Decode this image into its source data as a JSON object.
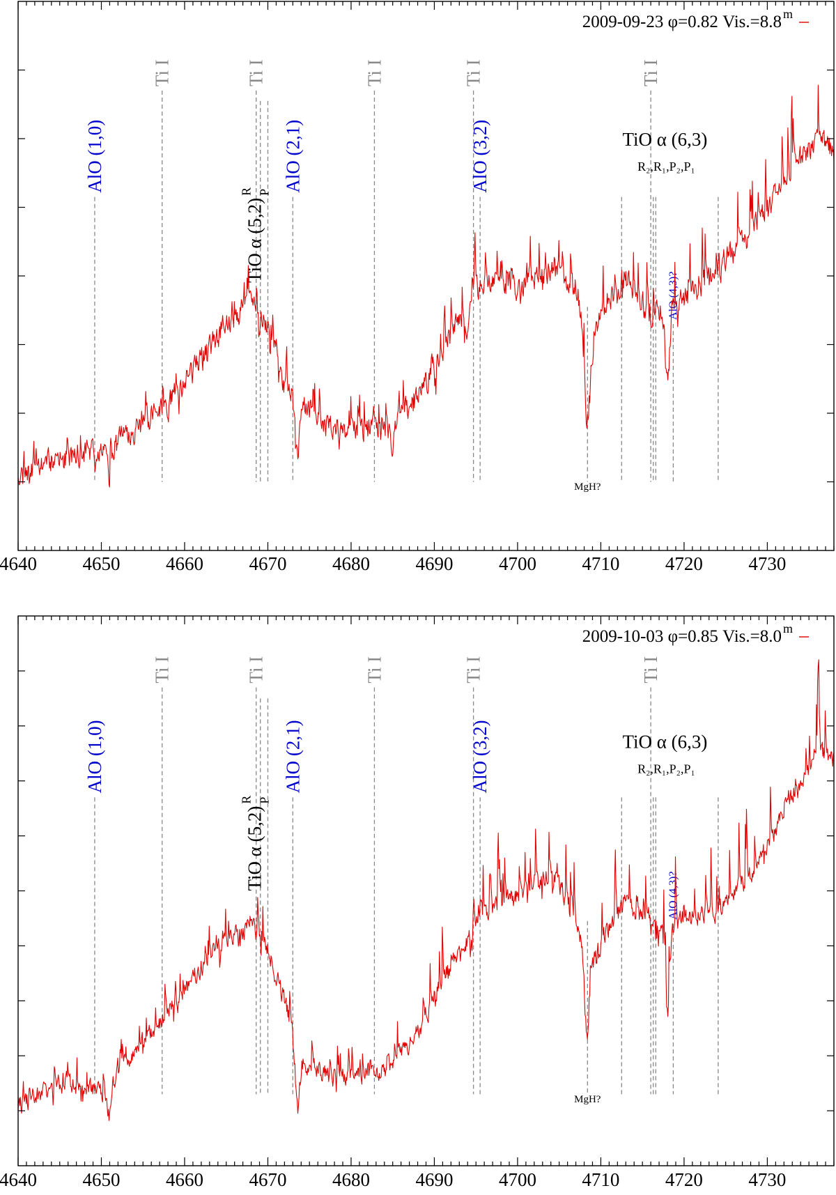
{
  "colors": {
    "spectrum": "#e00000",
    "alo": "#0000cc",
    "ti": "#888888",
    "tio": "#000000"
  },
  "chart_data": [
    {
      "type": "line",
      "legend": "2009-09-23 φ=0.82 Vis.=8.8",
      "legend_sup": "m",
      "legend_position": "top-right",
      "xlim": [
        4640,
        4738
      ],
      "x_ticks": [
        "4640",
        "4650",
        "4660",
        "4670",
        "4680",
        "4690",
        "4700",
        "4710",
        "4720",
        "4730"
      ],
      "ylim": [
        0,
        8
      ],
      "y_minor_ticks": [
        1,
        2,
        3,
        4,
        5,
        6,
        7
      ],
      "series": [
        {
          "name": "2009-09-23",
          "color": "#e00000",
          "seed": 11,
          "spike_height": 0.55
        }
      ],
      "baseline": [
        [
          4640,
          1.15
        ],
        [
          4646,
          1.35
        ],
        [
          4652,
          1.55
        ],
        [
          4658,
          2.15
        ],
        [
          4662,
          2.75
        ],
        [
          4665,
          3.3
        ],
        [
          4668,
          3.65
        ],
        [
          4670,
          3.2
        ],
        [
          4672,
          2.4
        ],
        [
          4676,
          1.85
        ],
        [
          4680,
          1.75
        ],
        [
          4684,
          1.75
        ],
        [
          4688,
          2.2
        ],
        [
          4691,
          2.9
        ],
        [
          4694,
          3.6
        ],
        [
          4696,
          3.9
        ],
        [
          4700,
          3.85
        ],
        [
          4704,
          4.1
        ],
        [
          4707,
          3.9
        ],
        [
          4708.5,
          2.65
        ],
        [
          4710,
          3.5
        ],
        [
          4713,
          4.0
        ],
        [
          4716,
          3.4
        ],
        [
          4718,
          3.6
        ],
        [
          4720,
          3.65
        ],
        [
          4724,
          4.1
        ],
        [
          4728,
          4.6
        ],
        [
          4732,
          5.4
        ],
        [
          4736,
          6.0
        ],
        [
          4738,
          5.8
        ]
      ],
      "dips": [
        [
          4651.0,
          0.45
        ],
        [
          4673.5,
          0.8
        ],
        [
          4685.0,
          0.4
        ],
        [
          4694.0,
          0.5
        ],
        [
          4708.3,
          0.9
        ],
        [
          4718.0,
          1.2
        ]
      ],
      "ann_bottom": 1.0,
      "label_top": 6.7,
      "lines": [
        {
          "x": 4649.2,
          "text": "AlO (1,0)",
          "kind": "alo",
          "top": 5.15
        },
        {
          "x": 4657.3,
          "text": "Ti I",
          "kind": "ti",
          "top": 6.7
        },
        {
          "x": 4668.6,
          "text": "Ti I",
          "kind": "ti",
          "top": 6.7
        },
        {
          "x": 4669.1,
          "text": "",
          "kind": "tio",
          "top": 6.55
        },
        {
          "x": 4670.0,
          "text": "",
          "kind": "tio",
          "top": 6.55
        },
        {
          "x": 4673.0,
          "text": "AlO (2,1)",
          "kind": "alo",
          "top": 5.15
        },
        {
          "x": 4682.8,
          "text": "Ti I",
          "kind": "ti",
          "top": 6.7
        },
        {
          "x": 4694.7,
          "text": "Ti I",
          "kind": "ti",
          "top": 6.7
        },
        {
          "x": 4695.5,
          "text": "AlO (3,2)",
          "kind": "alo",
          "top": 5.15
        },
        {
          "x": 4708.4,
          "text": "MgH?",
          "kind": "mgh",
          "top": 3.55
        },
        {
          "x": 4712.5,
          "text": "",
          "kind": "tio",
          "top": 5.15
        },
        {
          "x": 4716.0,
          "text": "Ti I",
          "kind": "ti",
          "top": 6.7
        },
        {
          "x": 4716.3,
          "text": "",
          "kind": "tio",
          "top": 5.15
        },
        {
          "x": 4716.6,
          "text": "",
          "kind": "tio",
          "top": 5.15
        },
        {
          "x": 4718.7,
          "text": "AlO (4,3)?",
          "kind": "alo-small",
          "top": 3.3
        },
        {
          "x": 4724.1,
          "text": "",
          "kind": "tio",
          "top": 5.15
        }
      ],
      "tio52": {
        "main": "TiO α (5,2)",
        "sup": "R",
        "sub": "P",
        "x": 4668.4,
        "y": 3.9
      },
      "tio63": {
        "main": "TiO α (6,3)",
        "sub": "R₂,R₁,P₂,P₁",
        "x": 4717.7,
        "y": 5.9
      }
    },
    {
      "type": "line",
      "legend": "2009-10-03 φ=0.85 Vis.=8.0",
      "legend_sup": "m",
      "legend_position": "top-right",
      "xlim": [
        4640,
        4738
      ],
      "x_ticks": [
        "4640",
        "4650",
        "4660",
        "4670",
        "4680",
        "4690",
        "4700",
        "4710",
        "4720",
        "4730"
      ],
      "ylim": [
        0,
        10
      ],
      "y_minor_ticks": [
        1,
        2,
        3,
        4,
        5,
        6,
        7,
        8,
        9
      ],
      "series": [
        {
          "name": "2009-10-03",
          "color": "#e00000",
          "seed": 29,
          "spike_height": 0.85
        }
      ],
      "baseline": [
        [
          4640,
          1.1
        ],
        [
          4646,
          1.55
        ],
        [
          4650,
          1.3
        ],
        [
          4654,
          2.1
        ],
        [
          4658,
          2.8
        ],
        [
          4662,
          3.6
        ],
        [
          4665,
          4.1
        ],
        [
          4668,
          4.45
        ],
        [
          4670,
          3.9
        ],
        [
          4672,
          3.0
        ],
        [
          4674,
          1.9
        ],
        [
          4678,
          1.6
        ],
        [
          4684,
          1.7
        ],
        [
          4688,
          2.4
        ],
        [
          4691,
          3.4
        ],
        [
          4694,
          4.1
        ],
        [
          4696,
          4.6
        ],
        [
          4700,
          4.9
        ],
        [
          4704,
          5.3
        ],
        [
          4707,
          4.6
        ],
        [
          4708.5,
          3.3
        ],
        [
          4710,
          4.1
        ],
        [
          4713,
          4.8
        ],
        [
          4716,
          4.35
        ],
        [
          4718,
          4.2
        ],
        [
          4720,
          4.5
        ],
        [
          4724,
          4.6
        ],
        [
          4728,
          5.3
        ],
        [
          4732,
          6.4
        ],
        [
          4736,
          7.5
        ],
        [
          4738,
          7.4
        ]
      ],
      "dips": [
        [
          4651.0,
          0.6
        ],
        [
          4673.5,
          0.9
        ],
        [
          4708.3,
          1.0
        ],
        [
          4718.0,
          1.4
        ]
      ],
      "ann_bottom": 1.3,
      "label_top": 8.7,
      "lines": [
        {
          "x": 4649.2,
          "text": "AlO (1,0)",
          "kind": "alo",
          "top": 6.7
        },
        {
          "x": 4657.3,
          "text": "Ti I",
          "kind": "ti",
          "top": 8.7
        },
        {
          "x": 4668.6,
          "text": "Ti I",
          "kind": "ti",
          "top": 8.7
        },
        {
          "x": 4669.1,
          "text": "",
          "kind": "tio",
          "top": 8.5
        },
        {
          "x": 4670.0,
          "text": "",
          "kind": "tio",
          "top": 8.5
        },
        {
          "x": 4673.0,
          "text": "AlO (2,1)",
          "kind": "alo",
          "top": 6.7
        },
        {
          "x": 4682.8,
          "text": "Ti I",
          "kind": "ti",
          "top": 8.7
        },
        {
          "x": 4694.7,
          "text": "Ti I",
          "kind": "ti",
          "top": 8.7
        },
        {
          "x": 4695.5,
          "text": "AlO (3,2)",
          "kind": "alo",
          "top": 6.7
        },
        {
          "x": 4708.4,
          "text": "MgH?",
          "kind": "mgh",
          "top": 4.45
        },
        {
          "x": 4712.5,
          "text": "",
          "kind": "tio",
          "top": 6.7
        },
        {
          "x": 4716.0,
          "text": "Ti I",
          "kind": "ti",
          "top": 8.7
        },
        {
          "x": 4716.3,
          "text": "",
          "kind": "tio",
          "top": 6.7
        },
        {
          "x": 4716.6,
          "text": "",
          "kind": "tio",
          "top": 6.7
        },
        {
          "x": 4718.7,
          "text": "AlO (4,3)?",
          "kind": "alo-small",
          "top": 4.4
        },
        {
          "x": 4724.1,
          "text": "",
          "kind": "tio",
          "top": 6.7
        }
      ],
      "tio52": {
        "main": "TiO α (5,2)",
        "sup": "R",
        "sub": "P",
        "x": 4668.4,
        "y": 5.0
      },
      "tio63": {
        "main": "TiO α (6,3)",
        "sub": "R₂,R₁,P₂,P₁",
        "x": 4717.7,
        "y": 7.6
      }
    }
  ]
}
